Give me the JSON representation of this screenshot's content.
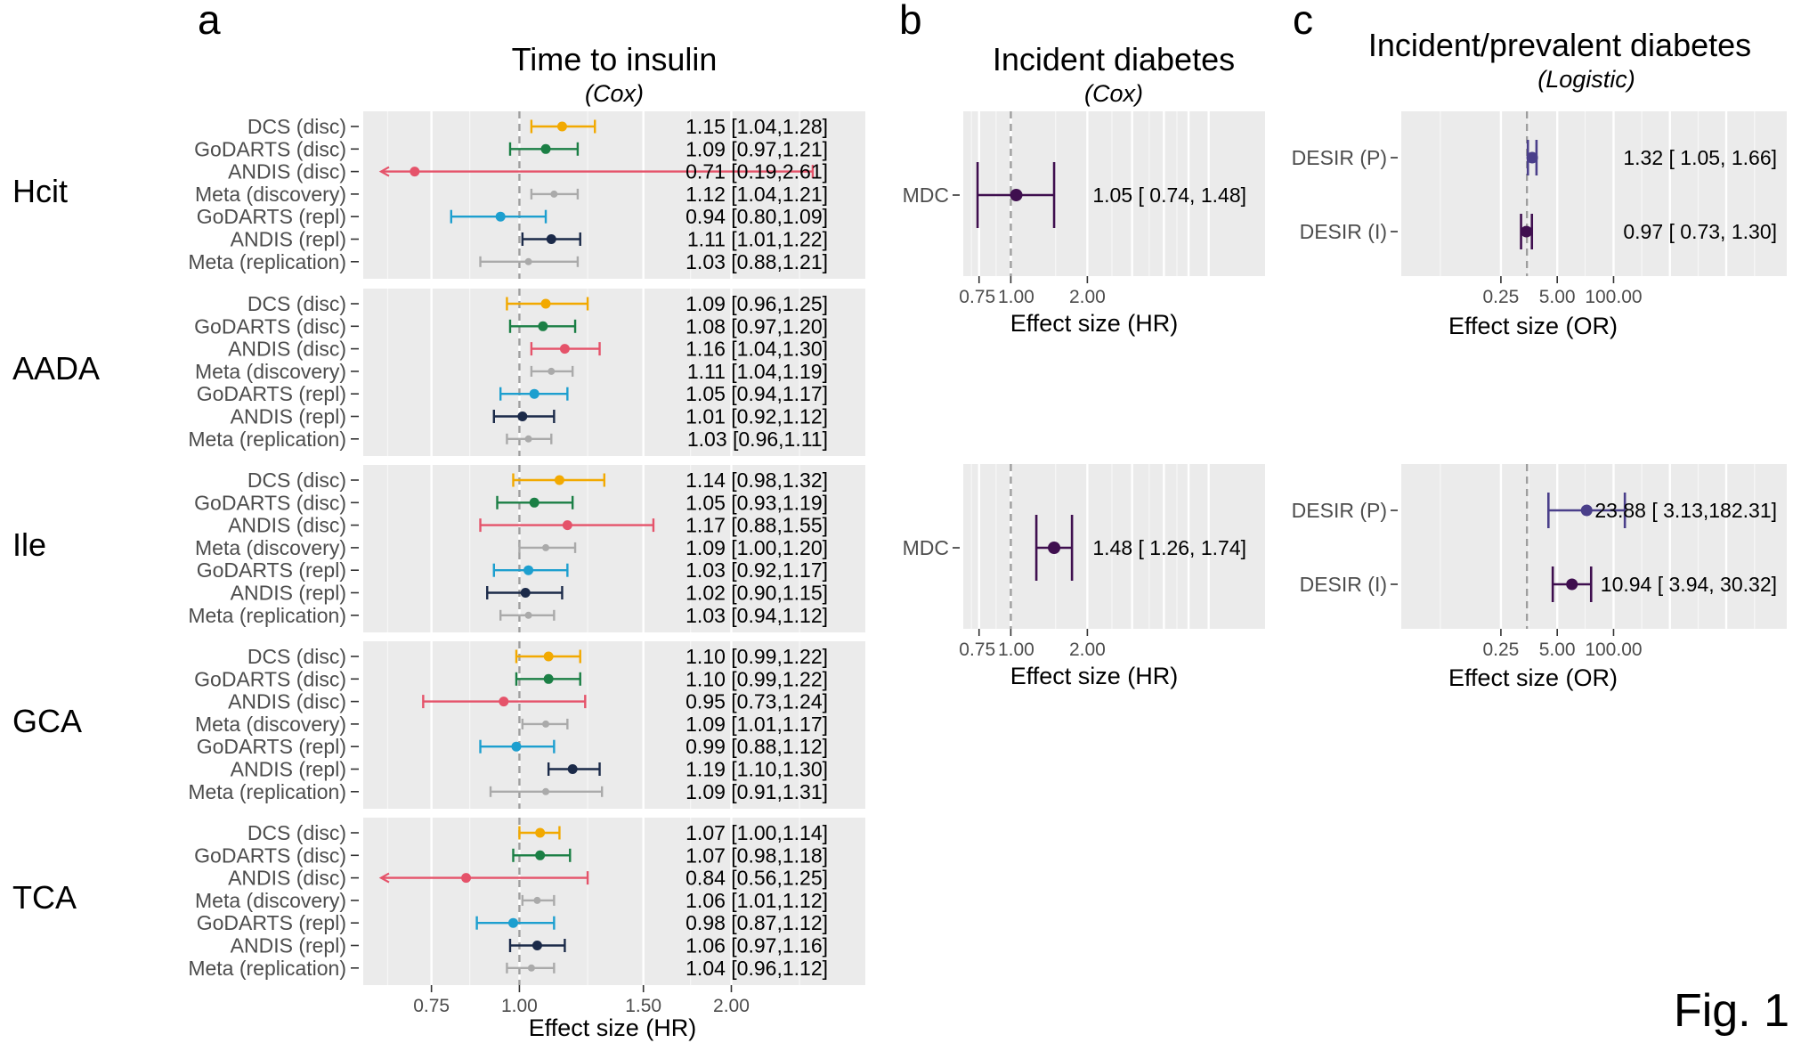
{
  "figure_label": "Fig. 1",
  "colors": {
    "DCS (disc)": "#F2A900",
    "GoDARTS (disc)": "#1B7F45",
    "ANDIS (disc)": "#E5536A",
    "Meta (discovery)": "#AAAAAA",
    "GoDARTS (repl)": "#1D9FCF",
    "ANDIS (repl)": "#1B2A49",
    "Meta (replication)": "#AAAAAA",
    "MDC": "#3F0F4F",
    "DESIR (P)": "#4A3F8A",
    "DESIR (I)": "#3F0F4F",
    "panel_bg": "#EBEBEB",
    "refline": "#9E9E9E"
  },
  "panels": {
    "a": {
      "letter": "a",
      "title": "Time to insulin",
      "subtitle": "(Cox)",
      "xlabel": "Effect size (HR)"
    },
    "b": {
      "letter": "b",
      "title": "Incident diabetes",
      "subtitle": "(Cox)",
      "xlabel": "Effect size (HR)"
    },
    "c": {
      "letter": "c",
      "title": "Incident/prevalent  diabetes",
      "subtitle": "(Logistic)",
      "xlabel": "Effect size (OR)"
    }
  },
  "chart_data": [
    {
      "id": "a",
      "type": "forest",
      "title": "Time to insulin",
      "subtitle": "(Cox)",
      "xlabel": "Effect size (HR)",
      "x_scale": "log",
      "x_ticks": [
        0.75,
        1.0,
        1.5,
        2.0
      ],
      "x_tick_labels": [
        "0.75",
        "1.00",
        "1.50",
        "2.00"
      ],
      "xlim": [
        0.6,
        3.1
      ],
      "reference": 1,
      "studies": [
        "DCS (disc)",
        "GoDARTS (disc)",
        "ANDIS (disc)",
        "Meta (discovery)",
        "GoDARTS (repl)",
        "ANDIS (repl)",
        "Meta (replication)"
      ],
      "facets": [
        {
          "name": "Hcit",
          "rows": [
            {
              "study": "DCS (disc)",
              "hr": 1.15,
              "lo": 1.04,
              "hi": 1.28,
              "label": "1.15 [1.04,1.28]"
            },
            {
              "study": "GoDARTS (disc)",
              "hr": 1.09,
              "lo": 0.97,
              "hi": 1.21,
              "label": "1.09 [0.97,1.21]"
            },
            {
              "study": "ANDIS (disc)",
              "hr": 0.71,
              "lo": 0.19,
              "hi": 2.61,
              "label": "0.71 [0.19,2.61]"
            },
            {
              "study": "Meta (discovery)",
              "hr": 1.12,
              "lo": 1.04,
              "hi": 1.21,
              "label": "1.12 [1.04,1.21]"
            },
            {
              "study": "GoDARTS (repl)",
              "hr": 0.94,
              "lo": 0.8,
              "hi": 1.09,
              "label": "0.94 [0.80,1.09]"
            },
            {
              "study": "ANDIS (repl)",
              "hr": 1.11,
              "lo": 1.01,
              "hi": 1.22,
              "label": "1.11 [1.01,1.22]"
            },
            {
              "study": "Meta (replication)",
              "hr": 1.03,
              "lo": 0.88,
              "hi": 1.21,
              "label": "1.03 [0.88,1.21]"
            }
          ]
        },
        {
          "name": "AADA",
          "rows": [
            {
              "study": "DCS (disc)",
              "hr": 1.09,
              "lo": 0.96,
              "hi": 1.25,
              "label": "1.09 [0.96,1.25]"
            },
            {
              "study": "GoDARTS (disc)",
              "hr": 1.08,
              "lo": 0.97,
              "hi": 1.2,
              "label": "1.08 [0.97,1.20]"
            },
            {
              "study": "ANDIS (disc)",
              "hr": 1.16,
              "lo": 1.04,
              "hi": 1.3,
              "label": "1.16 [1.04,1.30]"
            },
            {
              "study": "Meta (discovery)",
              "hr": 1.11,
              "lo": 1.04,
              "hi": 1.19,
              "label": "1.11 [1.04,1.19]"
            },
            {
              "study": "GoDARTS (repl)",
              "hr": 1.05,
              "lo": 0.94,
              "hi": 1.17,
              "label": "1.05 [0.94,1.17]"
            },
            {
              "study": "ANDIS (repl)",
              "hr": 1.01,
              "lo": 0.92,
              "hi": 1.12,
              "label": "1.01 [0.92,1.12]"
            },
            {
              "study": "Meta (replication)",
              "hr": 1.03,
              "lo": 0.96,
              "hi": 1.11,
              "label": "1.03 [0.96,1.11]"
            }
          ]
        },
        {
          "name": "Ile",
          "rows": [
            {
              "study": "DCS (disc)",
              "hr": 1.14,
              "lo": 0.98,
              "hi": 1.32,
              "label": "1.14 [0.98,1.32]"
            },
            {
              "study": "GoDARTS (disc)",
              "hr": 1.05,
              "lo": 0.93,
              "hi": 1.19,
              "label": "1.05 [0.93,1.19]"
            },
            {
              "study": "ANDIS (disc)",
              "hr": 1.17,
              "lo": 0.88,
              "hi": 1.55,
              "label": "1.17 [0.88,1.55]"
            },
            {
              "study": "Meta (discovery)",
              "hr": 1.09,
              "lo": 1.0,
              "hi": 1.2,
              "label": "1.09 [1.00,1.20]"
            },
            {
              "study": "GoDARTS (repl)",
              "hr": 1.03,
              "lo": 0.92,
              "hi": 1.17,
              "label": "1.03 [0.92,1.17]"
            },
            {
              "study": "ANDIS (repl)",
              "hr": 1.02,
              "lo": 0.9,
              "hi": 1.15,
              "label": "1.02 [0.90,1.15]"
            },
            {
              "study": "Meta (replication)",
              "hr": 1.03,
              "lo": 0.94,
              "hi": 1.12,
              "label": "1.03 [0.94,1.12]"
            }
          ]
        },
        {
          "name": "GCA",
          "rows": [
            {
              "study": "DCS (disc)",
              "hr": 1.1,
              "lo": 0.99,
              "hi": 1.22,
              "label": "1.10 [0.99,1.22]"
            },
            {
              "study": "GoDARTS (disc)",
              "hr": 1.1,
              "lo": 0.99,
              "hi": 1.22,
              "label": "1.10 [0.99,1.22]"
            },
            {
              "study": "ANDIS (disc)",
              "hr": 0.95,
              "lo": 0.73,
              "hi": 1.24,
              "label": "0.95 [0.73,1.24]"
            },
            {
              "study": "Meta (discovery)",
              "hr": 1.09,
              "lo": 1.01,
              "hi": 1.17,
              "label": "1.09 [1.01,1.17]"
            },
            {
              "study": "GoDARTS (repl)",
              "hr": 0.99,
              "lo": 0.88,
              "hi": 1.12,
              "label": "0.99 [0.88,1.12]"
            },
            {
              "study": "ANDIS (repl)",
              "hr": 1.19,
              "lo": 1.1,
              "hi": 1.3,
              "label": "1.19 [1.10,1.30]"
            },
            {
              "study": "Meta (replication)",
              "hr": 1.09,
              "lo": 0.91,
              "hi": 1.31,
              "label": "1.09 [0.91,1.31]"
            }
          ]
        },
        {
          "name": "TCA",
          "rows": [
            {
              "study": "DCS (disc)",
              "hr": 1.07,
              "lo": 1.0,
              "hi": 1.14,
              "label": "1.07 [1.00,1.14]"
            },
            {
              "study": "GoDARTS (disc)",
              "hr": 1.07,
              "lo": 0.98,
              "hi": 1.18,
              "label": "1.07 [0.98,1.18]"
            },
            {
              "study": "ANDIS (disc)",
              "hr": 0.84,
              "lo": 0.56,
              "hi": 1.25,
              "label": "0.84 [0.56,1.25]"
            },
            {
              "study": "Meta (discovery)",
              "hr": 1.06,
              "lo": 1.01,
              "hi": 1.12,
              "label": "1.06 [1.01,1.12]"
            },
            {
              "study": "GoDARTS (repl)",
              "hr": 0.98,
              "lo": 0.87,
              "hi": 1.12,
              "label": "0.98 [0.87,1.12]"
            },
            {
              "study": "ANDIS (repl)",
              "hr": 1.06,
              "lo": 0.97,
              "hi": 1.16,
              "label": "1.06 [0.97,1.16]"
            },
            {
              "study": "Meta (replication)",
              "hr": 1.04,
              "lo": 0.96,
              "hi": 1.12,
              "label": "1.04 [0.96,1.12]"
            }
          ]
        }
      ]
    },
    {
      "id": "b",
      "type": "forest",
      "title": "Incident diabetes",
      "subtitle": "(Cox)",
      "xlabel": "Effect size (HR)",
      "x_scale": "log",
      "x_ticks": [
        0.75,
        1.0,
        2.0
      ],
      "x_tick_labels": [
        "0.75",
        "1.00",
        "2.00"
      ],
      "xlim": [
        0.65,
        10
      ],
      "reference": 1,
      "facets": [
        {
          "rows": [
            {
              "study": "MDC",
              "hr": 1.05,
              "lo": 0.74,
              "hi": 1.48,
              "label": "1.05 [ 0.74,  1.48]"
            }
          ]
        },
        {
          "rows": [
            {
              "study": "MDC",
              "hr": 1.48,
              "lo": 1.26,
              "hi": 1.74,
              "label": "1.48 [ 1.26,  1.74]"
            }
          ]
        }
      ]
    },
    {
      "id": "c",
      "type": "forest",
      "title": "Incident/prevalent  diabetes",
      "subtitle": "(Logistic)",
      "xlabel": "Effect size (OR)",
      "x_scale": "log",
      "x_ticks": [
        0.25,
        5.0,
        100.0
      ],
      "x_tick_labels": [
        "0.25",
        "5.00",
        "100.00"
      ],
      "xlim": [
        0.00125,
        1000000
      ],
      "reference": 1,
      "facets": [
        {
          "rows": [
            {
              "study": "DESIR (P)",
              "or": 1.32,
              "lo": 1.05,
              "hi": 1.66,
              "label": "1.32 [ 1.05,  1.66]"
            },
            {
              "study": "DESIR (I)",
              "or": 0.97,
              "lo": 0.73,
              "hi": 1.3,
              "label": "0.97 [ 0.73,  1.30]"
            }
          ]
        },
        {
          "rows": [
            {
              "study": "DESIR (P)",
              "or": 23.88,
              "lo": 3.13,
              "hi": 182.31,
              "label": "23.88 [ 3.13,182.31]"
            },
            {
              "study": "DESIR (I)",
              "or": 10.94,
              "lo": 3.94,
              "hi": 30.32,
              "label": "10.94 [ 3.94, 30.32]"
            }
          ]
        }
      ]
    }
  ]
}
